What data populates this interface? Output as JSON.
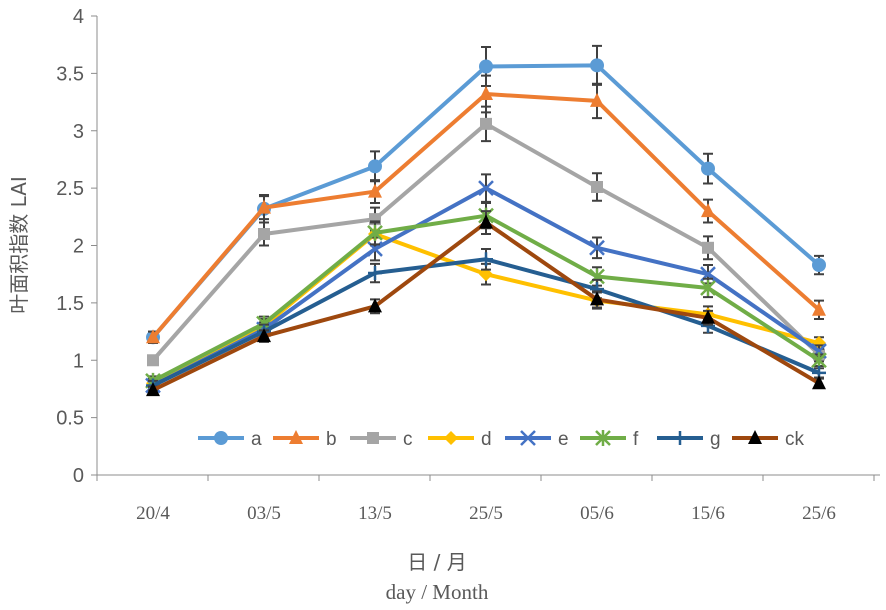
{
  "chart_data": {
    "type": "line",
    "categories": [
      "20/4",
      "03/5",
      "13/5",
      "25/5",
      "05/6",
      "15/6",
      "25/6"
    ],
    "ylim": [
      0,
      4
    ],
    "yticks": [
      "0",
      "0.5",
      "1",
      "1.5",
      "2",
      "2.5",
      "3",
      "3.5",
      "4"
    ],
    "ylabel": "叶面积指数 LAI",
    "xlabel_cn": "日 / 月",
    "xlabel_en": "day  /  Month",
    "grid": false,
    "legend_position": "inside-bottom",
    "series": [
      {
        "name": "a",
        "color": "#5B9BD5",
        "marker": "circle",
        "values": [
          1.2,
          2.32,
          2.69,
          3.56,
          3.57,
          2.67,
          1.83
        ],
        "errors": [
          0.05,
          0.12,
          0.13,
          0.17,
          0.17,
          0.13,
          0.08
        ]
      },
      {
        "name": "b",
        "color": "#ED7D31",
        "marker": "triangle",
        "values": [
          1.2,
          2.33,
          2.47,
          3.32,
          3.26,
          2.3,
          1.44
        ],
        "errors": [
          0.05,
          0.1,
          0.1,
          0.16,
          0.15,
          0.1,
          0.08
        ]
      },
      {
        "name": "c",
        "color": "#A5A5A5",
        "marker": "square",
        "values": [
          1.0,
          2.1,
          2.23,
          3.06,
          2.51,
          1.98,
          1.05
        ],
        "errors": [
          0.04,
          0.1,
          0.1,
          0.15,
          0.12,
          0.1,
          0.06
        ]
      },
      {
        "name": "d",
        "color": "#FFC000",
        "marker": "diamond",
        "values": [
          0.8,
          1.3,
          2.1,
          1.75,
          1.52,
          1.4,
          1.15
        ],
        "errors": [
          0.04,
          0.06,
          0.1,
          0.09,
          0.07,
          0.07,
          0.05
        ]
      },
      {
        "name": "e",
        "color": "#4472C4",
        "marker": "x",
        "values": [
          0.78,
          1.27,
          1.97,
          2.5,
          1.98,
          1.75,
          1.08
        ],
        "errors": [
          0.04,
          0.06,
          0.1,
          0.12,
          0.09,
          0.08,
          0.05
        ]
      },
      {
        "name": "f",
        "color": "#70AD47",
        "marker": "star",
        "values": [
          0.82,
          1.32,
          2.11,
          2.26,
          1.73,
          1.63,
          1.0
        ],
        "errors": [
          0.04,
          0.06,
          0.1,
          0.11,
          0.08,
          0.08,
          0.05
        ]
      },
      {
        "name": "g",
        "color": "#255E91",
        "marker": "plus",
        "values": [
          0.78,
          1.25,
          1.76,
          1.88,
          1.62,
          1.3,
          0.89
        ],
        "errors": [
          0.04,
          0.06,
          0.08,
          0.09,
          0.08,
          0.06,
          0.04
        ]
      },
      {
        "name": "ck",
        "color": "#9E480E",
        "marker": "triangle-filled-black",
        "values": [
          0.74,
          1.21,
          1.47,
          2.2,
          1.53,
          1.37,
          0.8
        ],
        "errors": [
          0.03,
          0.05,
          0.06,
          0.1,
          0.07,
          0.06,
          0.04
        ]
      }
    ]
  }
}
